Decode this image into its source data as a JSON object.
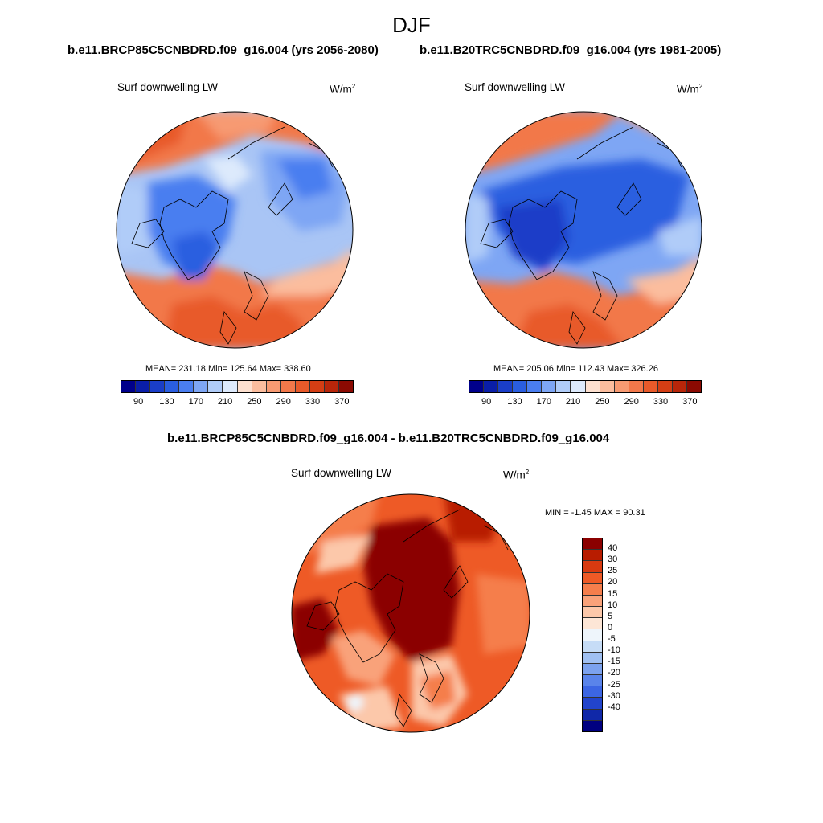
{
  "title": "DJF",
  "panels": {
    "left": {
      "subtitle": "b.e11.BRCP85C5CNBDRD.f09_g16.004 (yrs 2056-2080)",
      "var": "Surf downwelling LW",
      "unit_base": "W/m",
      "unit_exp": "2",
      "stats": "MEAN= 231.18  Min= 125.64  Max= 338.60"
    },
    "right": {
      "subtitle": "b.e11.B20TRC5CNBDRD.f09_g16.004 (yrs 1981-2005)",
      "var": "Surf downwelling LW",
      "unit_base": "W/m",
      "unit_exp": "2",
      "stats": "MEAN= 205.06  Min= 112.43  Max= 326.26"
    },
    "diff": {
      "subtitle": "b.e11.BRCP85C5CNBDRD.f09_g16.004 - b.e11.B20TRC5CNBDRD.f09_g16.004",
      "var": "Surf downwelling LW",
      "unit_base": "W/m",
      "unit_exp": "2",
      "stats": "MIN =  -1.45 MAX =  90.31"
    }
  },
  "colorbar_abs": {
    "colors": [
      "#00008b",
      "#0a1ea8",
      "#1a3ec8",
      "#2a5ee0",
      "#4a7ef0",
      "#7ea6f4",
      "#b0ccf8",
      "#ddeafc",
      "#fde0cf",
      "#fbbd9e",
      "#f79a72",
      "#f2784a",
      "#e85a2a",
      "#d43e14",
      "#b8260a",
      "#8b0a02"
    ],
    "tick_labels": [
      "90",
      "130",
      "170",
      "210",
      "250",
      "290",
      "330",
      "370"
    ]
  },
  "colorbar_diff": {
    "colors": [
      "#8b0000",
      "#b81c00",
      "#d83a10",
      "#ee5a26",
      "#f57e4c",
      "#f9a27a",
      "#fcc8aa",
      "#fde6d6",
      "#eef5fb",
      "#c6dcf6",
      "#a0c0f2",
      "#7ca2ee",
      "#5a84ea",
      "#3c66e4",
      "#2244cc",
      "#1028a8",
      "#000080"
    ],
    "labels": [
      "40",
      "30",
      "25",
      "20",
      "15",
      "10",
      "5",
      "0",
      "-5",
      "-10",
      "-15",
      "-20",
      "-25",
      "-30",
      "-40"
    ]
  }
}
